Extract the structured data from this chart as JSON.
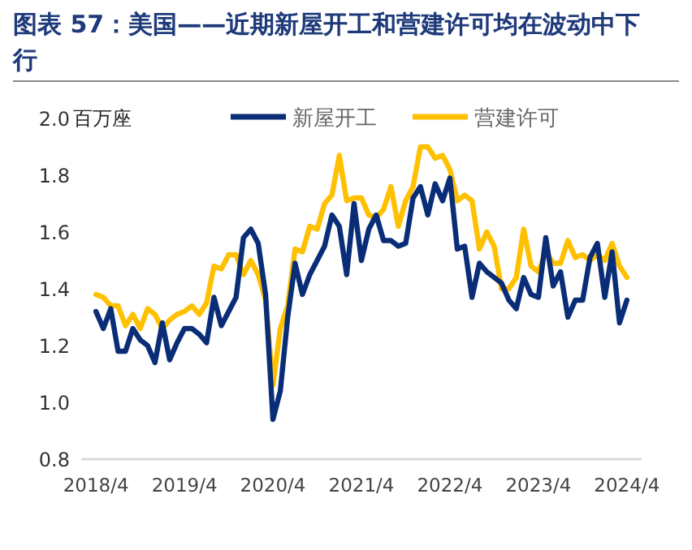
{
  "chart_data": {
    "type": "line",
    "title": "图表 57：美国——近期新屋开工和营建许可均在波动中下行",
    "ylabel": "百万座",
    "x": [
      "2018-04",
      "2018-05",
      "2018-06",
      "2018-07",
      "2018-08",
      "2018-09",
      "2018-10",
      "2018-11",
      "2018-12",
      "2019-01",
      "2019-02",
      "2019-03",
      "2019-04",
      "2019-05",
      "2019-06",
      "2019-07",
      "2019-08",
      "2019-09",
      "2019-10",
      "2019-11",
      "2019-12",
      "2020-01",
      "2020-02",
      "2020-03",
      "2020-04",
      "2020-05",
      "2020-06",
      "2020-07",
      "2020-08",
      "2020-09",
      "2020-10",
      "2020-11",
      "2020-12",
      "2021-01",
      "2021-02",
      "2021-03",
      "2021-04",
      "2021-05",
      "2021-06",
      "2021-07",
      "2021-08",
      "2021-09",
      "2021-10",
      "2021-11",
      "2021-12",
      "2022-01",
      "2022-02",
      "2022-03",
      "2022-04",
      "2022-05",
      "2022-06",
      "2022-07",
      "2022-08",
      "2022-09",
      "2022-10",
      "2022-11",
      "2022-12",
      "2023-01",
      "2023-02",
      "2023-03",
      "2023-04",
      "2023-05",
      "2023-06",
      "2023-07",
      "2023-08",
      "2023-09",
      "2023-10",
      "2023-11",
      "2023-12",
      "2024-01",
      "2024-02",
      "2024-03",
      "2024-04"
    ],
    "series": [
      {
        "name": "新屋开工",
        "color": "#0a2d78",
        "values": [
          1.32,
          1.26,
          1.33,
          1.18,
          1.18,
          1.26,
          1.22,
          1.2,
          1.14,
          1.28,
          1.15,
          1.21,
          1.26,
          1.26,
          1.24,
          1.21,
          1.37,
          1.27,
          1.32,
          1.37,
          1.58,
          1.61,
          1.56,
          1.38,
          0.94,
          1.04,
          1.3,
          1.49,
          1.38,
          1.45,
          1.5,
          1.55,
          1.66,
          1.62,
          1.45,
          1.7,
          1.5,
          1.61,
          1.66,
          1.57,
          1.57,
          1.55,
          1.56,
          1.72,
          1.76,
          1.66,
          1.77,
          1.71,
          1.79,
          1.54,
          1.55,
          1.37,
          1.49,
          1.46,
          1.44,
          1.42,
          1.36,
          1.33,
          1.44,
          1.38,
          1.37,
          1.58,
          1.41,
          1.46,
          1.3,
          1.36,
          1.36,
          1.51,
          1.56,
          1.37,
          1.53,
          1.28,
          1.36
        ]
      },
      {
        "name": "营建许可",
        "color": "#ffc000",
        "values": [
          1.38,
          1.37,
          1.34,
          1.34,
          1.27,
          1.31,
          1.26,
          1.33,
          1.31,
          1.26,
          1.29,
          1.31,
          1.32,
          1.34,
          1.31,
          1.35,
          1.48,
          1.47,
          1.52,
          1.52,
          1.45,
          1.5,
          1.45,
          1.36,
          1.06,
          1.26,
          1.34,
          1.54,
          1.53,
          1.62,
          1.61,
          1.7,
          1.73,
          1.87,
          1.71,
          1.72,
          1.72,
          1.66,
          1.65,
          1.68,
          1.76,
          1.62,
          1.71,
          1.76,
          1.9,
          1.9,
          1.86,
          1.87,
          1.82,
          1.71,
          1.73,
          1.71,
          1.54,
          1.6,
          1.55,
          1.4,
          1.4,
          1.44,
          1.61,
          1.48,
          1.46,
          1.53,
          1.49,
          1.49,
          1.57,
          1.51,
          1.52,
          1.5,
          1.52,
          1.5,
          1.56,
          1.48,
          1.44
        ]
      }
    ],
    "xlim": [
      "2018-02",
      "2024-06"
    ],
    "xticks": [
      {
        "value": "2018-04",
        "label": "2018/4"
      },
      {
        "value": "2019-04",
        "label": "2019/4"
      },
      {
        "value": "2020-04",
        "label": "2020/4"
      },
      {
        "value": "2021-04",
        "label": "2021/4"
      },
      {
        "value": "2022-04",
        "label": "2022/4"
      },
      {
        "value": "2023-04",
        "label": "2023/4"
      },
      {
        "value": "2024-04",
        "label": "2024/4"
      }
    ],
    "ylim": [
      0.8,
      2.0
    ],
    "yticks": [
      {
        "value": 0.8,
        "label": "0.8"
      },
      {
        "value": 1.0,
        "label": "1.0"
      },
      {
        "value": 1.2,
        "label": "1.2"
      },
      {
        "value": 1.4,
        "label": "1.4"
      },
      {
        "value": 1.6,
        "label": "1.6"
      },
      {
        "value": 1.8,
        "label": "1.8"
      },
      {
        "value": 2.0,
        "label": "2.0"
      }
    ],
    "grid": false,
    "legend": "top",
    "marker": "none",
    "line_style": "solid"
  }
}
